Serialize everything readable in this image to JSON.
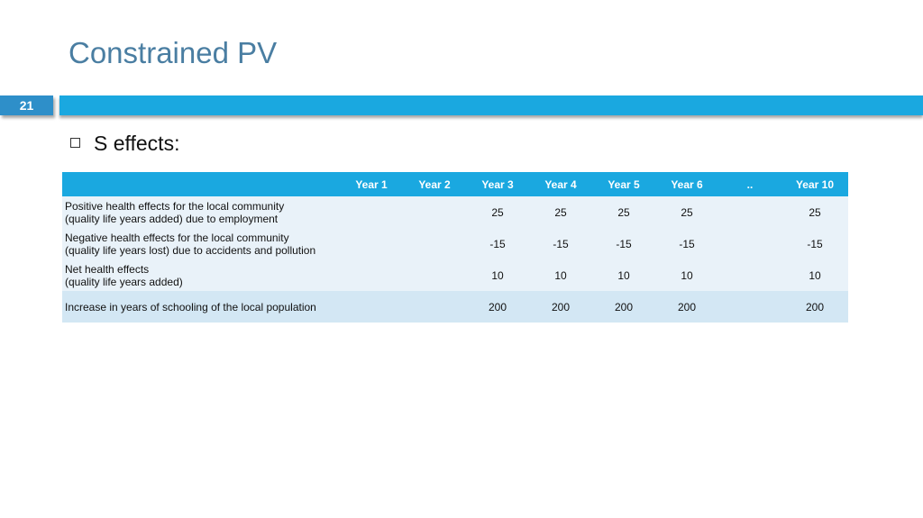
{
  "slide": {
    "title": "Constrained PV",
    "page_number": "21",
    "bullet": "S effects:"
  },
  "table": {
    "headers": [
      "",
      "Year 1",
      "Year 2",
      "Year 3",
      "Year 4",
      "Year 5",
      "Year 6",
      "..",
      "Year 10"
    ],
    "rows": [
      {
        "label_line1": "Positive health effects for the local community",
        "label_line2": "(quality life years added) due to employment",
        "values": [
          "",
          "",
          "25",
          "25",
          "25",
          "25",
          "",
          "25"
        ]
      },
      {
        "label_line1": "Negative health effects for the local community",
        "label_line2": "(quality life years lost) due to accidents and pollution",
        "values": [
          "",
          "",
          "-15",
          "-15",
          "-15",
          "-15",
          "",
          "-15"
        ]
      },
      {
        "label_line1": "Net health effects",
        "label_line2": "(quality life years added)",
        "values": [
          "",
          "",
          "10",
          "10",
          "10",
          "10",
          "",
          "10"
        ]
      },
      {
        "label_line1": "Increase in years of schooling of the local population",
        "label_line2": "",
        "values": [
          "",
          "",
          "200",
          "200",
          "200",
          "200",
          "",
          "200"
        ]
      }
    ]
  },
  "colors": {
    "title": "#4a7ea2",
    "header_bar": "#1aa8e0",
    "number_box": "#2e8fc9",
    "row_light": "#e9f2f9",
    "row_dark": "#d3e7f4"
  }
}
